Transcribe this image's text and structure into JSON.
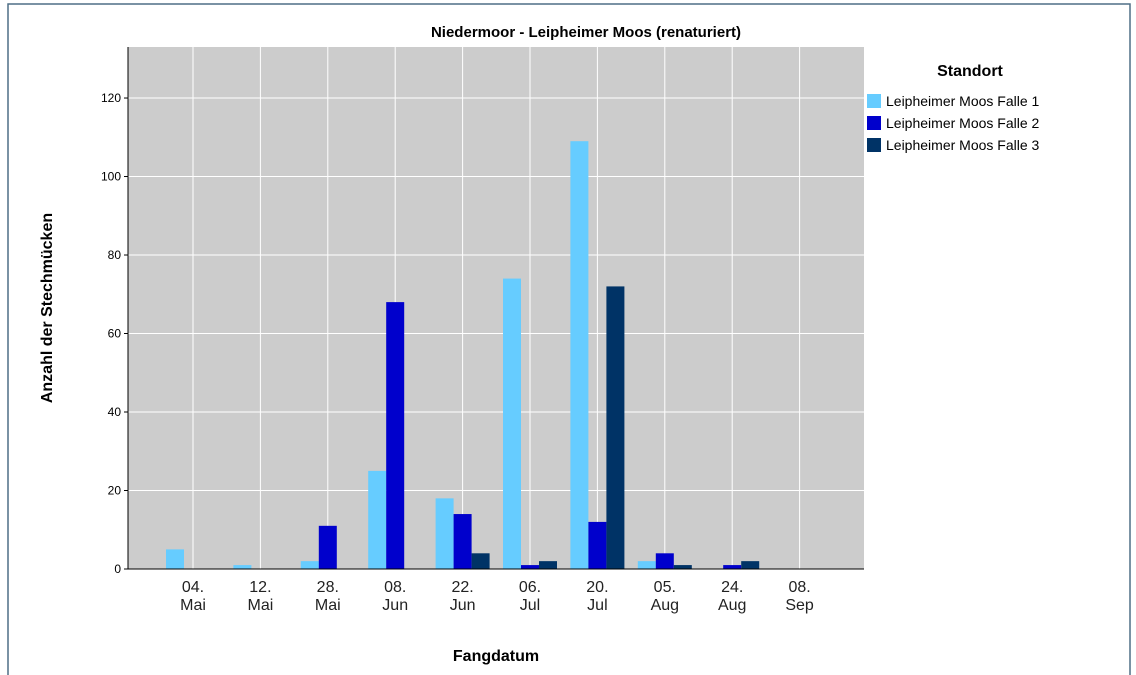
{
  "chart_data": {
    "type": "bar",
    "title": "Niedermoor - Leipheimer Moos (renaturiert)",
    "x_label": "Fangdatum",
    "y_label": "Anzahl der Stechmücken",
    "legend_title": "Standort",
    "categories": [
      "04. Mai",
      "12. Mai",
      "28. Mai",
      "08. Jun",
      "22. Jun",
      "06. Jul",
      "20. Jul",
      "05. Aug",
      "24. Aug",
      "08. Sep"
    ],
    "series": [
      {
        "name": "Leipheimer Moos Falle 1",
        "color": "#66ccff",
        "values": [
          5,
          1,
          2,
          25,
          18,
          74,
          109,
          2,
          0,
          0
        ]
      },
      {
        "name": "Leipheimer Moos Falle 2",
        "color": "#0000cc",
        "values": [
          0,
          0,
          11,
          68,
          14,
          1,
          12,
          4,
          1,
          0
        ]
      },
      {
        "name": "Leipheimer Moos Falle 3",
        "color": "#003366",
        "values": [
          0,
          0,
          0,
          0,
          4,
          2,
          72,
          1,
          2,
          0
        ]
      }
    ],
    "ylim": [
      0,
      133
    ],
    "yticks": [
      0,
      20,
      40,
      60,
      80,
      100,
      120
    ],
    "grid": true,
    "legend": "right"
  }
}
